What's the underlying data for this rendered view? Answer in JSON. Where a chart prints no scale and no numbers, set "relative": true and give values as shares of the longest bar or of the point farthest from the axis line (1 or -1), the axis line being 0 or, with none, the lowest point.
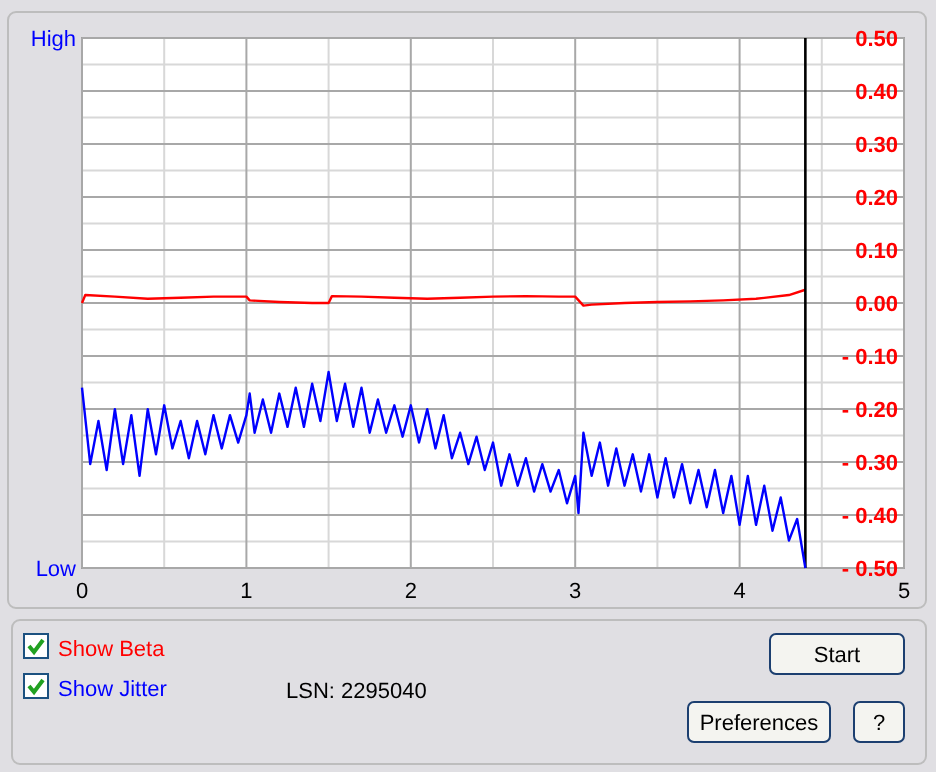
{
  "chart_data": [
    {
      "type": "line",
      "xlim": [
        0,
        5
      ],
      "xticks": [
        0,
        1,
        2,
        3,
        4,
        5
      ],
      "ylim": [
        -0.5,
        0.5
      ],
      "yticks": [
        {
          "value": 0.5,
          "label": "0.50"
        },
        {
          "value": 0.4,
          "label": "0.40"
        },
        {
          "value": 0.3,
          "label": "0.30"
        },
        {
          "value": 0.2,
          "label": "0.20"
        },
        {
          "value": 0.1,
          "label": "0.10"
        },
        {
          "value": 0,
          "label": "0.00"
        },
        {
          "value": -0.1,
          "label": "- 0.10"
        },
        {
          "value": -0.2,
          "label": "- 0.20"
        },
        {
          "value": -0.3,
          "label": "- 0.30"
        },
        {
          "value": -0.4,
          "label": "- 0.40"
        },
        {
          "value": -0.5,
          "label": "- 0.50"
        }
      ],
      "grid": true,
      "legend": "bottom left",
      "line_style": "solid",
      "series": [
        {
          "name": "Show Beta",
          "color": "#ff0000",
          "x": [
            0,
            0.02,
            0.2,
            0.4,
            0.6,
            0.8,
            1.0,
            1.02,
            1.2,
            1.4,
            1.5,
            1.52,
            1.7,
            1.9,
            2.1,
            2.3,
            2.5,
            2.7,
            2.9,
            3.0,
            3.05,
            3.1,
            3.3,
            3.5,
            3.7,
            3.9,
            4.1,
            4.3,
            4.4
          ],
          "values": [
            0,
            0.015,
            0.012,
            0.008,
            0.01,
            0.012,
            0.012,
            0.005,
            0.002,
            0.0,
            0.0,
            0.013,
            0.012,
            0.01,
            0.008,
            0.01,
            0.012,
            0.013,
            0.012,
            0.012,
            -0.005,
            -0.003,
            0.0,
            0.002,
            0.003,
            0.005,
            0.008,
            0.015,
            0.025
          ]
        }
      ],
      "ref_lines": [
        {
          "axis": "x",
          "value": 4.4,
          "color": "#000000"
        }
      ],
      "annotations": [
        "LSN:  2295040",
        "Start",
        "Preferences",
        "?"
      ]
    },
    {
      "type": "line",
      "relative": true,
      "xlim": [
        0,
        5
      ],
      "xticks": [
        0,
        1,
        2,
        3,
        4,
        5
      ],
      "tick_labels": false,
      "legend": "bottom left",
      "line_style": "solid",
      "series": [
        {
          "name": "Show Jitter",
          "color": "#0000ff",
          "x": [
            0,
            0.05,
            0.1,
            0.15,
            0.2,
            0.25,
            0.3,
            0.35,
            0.4,
            0.45,
            0.5,
            0.55,
            0.6,
            0.65,
            0.7,
            0.75,
            0.8,
            0.85,
            0.9,
            0.95,
            1.0,
            1.02,
            1.05,
            1.1,
            1.15,
            1.2,
            1.25,
            1.3,
            1.35,
            1.4,
            1.45,
            1.5,
            1.55,
            1.6,
            1.65,
            1.7,
            1.75,
            1.8,
            1.85,
            1.9,
            1.95,
            2.0,
            2.05,
            2.1,
            2.15,
            2.2,
            2.25,
            2.3,
            2.35,
            2.4,
            2.45,
            2.5,
            2.55,
            2.6,
            2.65,
            2.7,
            2.75,
            2.8,
            2.85,
            2.9,
            2.95,
            3.0,
            3.02,
            3.05,
            3.1,
            3.15,
            3.2,
            3.25,
            3.3,
            3.35,
            3.4,
            3.45,
            3.5,
            3.55,
            3.6,
            3.65,
            3.7,
            3.75,
            3.8,
            3.85,
            3.9,
            3.95,
            4.0,
            4.05,
            4.1,
            4.15,
            4.2,
            4.25,
            4.3,
            4.35,
            4.4
          ],
          "values": [
            0.92,
            0.53,
            0.75,
            0.5,
            0.81,
            0.53,
            0.78,
            0.47,
            0.81,
            0.58,
            0.83,
            0.61,
            0.75,
            0.56,
            0.75,
            0.58,
            0.78,
            0.61,
            0.78,
            0.64,
            0.78,
            0.89,
            0.69,
            0.86,
            0.69,
            0.89,
            0.72,
            0.92,
            0.72,
            0.94,
            0.75,
            1,
            0.75,
            0.94,
            0.72,
            0.92,
            0.69,
            0.86,
            0.69,
            0.83,
            0.67,
            0.83,
            0.64,
            0.81,
            0.61,
            0.78,
            0.56,
            0.69,
            0.53,
            0.67,
            0.5,
            0.64,
            0.42,
            0.58,
            0.42,
            0.56,
            0.39,
            0.53,
            0.39,
            0.5,
            0.33,
            0.47,
            0.28,
            0.69,
            0.47,
            0.64,
            0.42,
            0.61,
            0.42,
            0.58,
            0.39,
            0.58,
            0.36,
            0.56,
            0.36,
            0.53,
            0.33,
            0.5,
            0.31,
            0.5,
            0.28,
            0.47,
            0.22,
            0.47,
            0.22,
            0.42,
            0.19,
            0.36,
            0.14,
            0.25,
            0
          ]
        }
      ],
      "annotations": [
        "High",
        "Low"
      ]
    }
  ]
}
